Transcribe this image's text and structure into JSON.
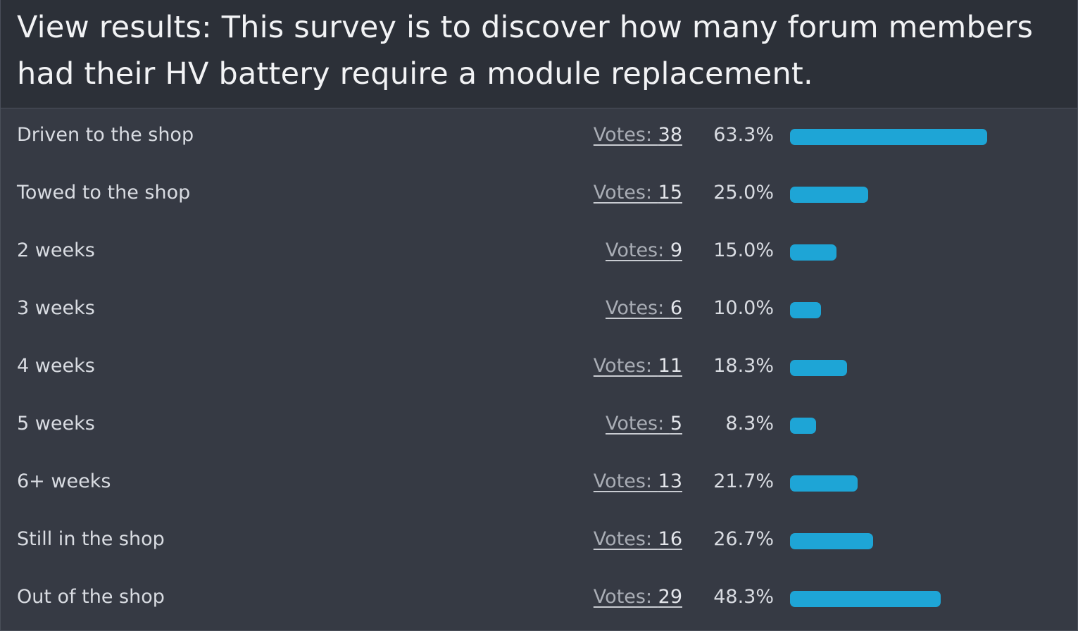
{
  "poll": {
    "title": "View results: This survey is to discover how many forum members had their HV battery require a module replacement.",
    "votes_prefix": "Votes: ",
    "bar_color": "#1ea5d6",
    "max_fraction": 0.633,
    "options": [
      {
        "label": "Driven to the shop",
        "votes": "38",
        "percent": "63.3%",
        "fraction": 0.633
      },
      {
        "label": "Towed to the shop",
        "votes": "15",
        "percent": "25.0%",
        "fraction": 0.25
      },
      {
        "label": "2 weeks",
        "votes": "9",
        "percent": "15.0%",
        "fraction": 0.15
      },
      {
        "label": "3 weeks",
        "votes": "6",
        "percent": "10.0%",
        "fraction": 0.1
      },
      {
        "label": "4 weeks",
        "votes": "11",
        "percent": "18.3%",
        "fraction": 0.183
      },
      {
        "label": "5 weeks",
        "votes": "5",
        "percent": "8.3%",
        "fraction": 0.083
      },
      {
        "label": "6+ weeks",
        "votes": "13",
        "percent": "21.7%",
        "fraction": 0.217
      },
      {
        "label": "Still in the shop",
        "votes": "16",
        "percent": "26.7%",
        "fraction": 0.267
      },
      {
        "label": "Out of the shop",
        "votes": "29",
        "percent": "48.3%",
        "fraction": 0.483
      }
    ]
  }
}
